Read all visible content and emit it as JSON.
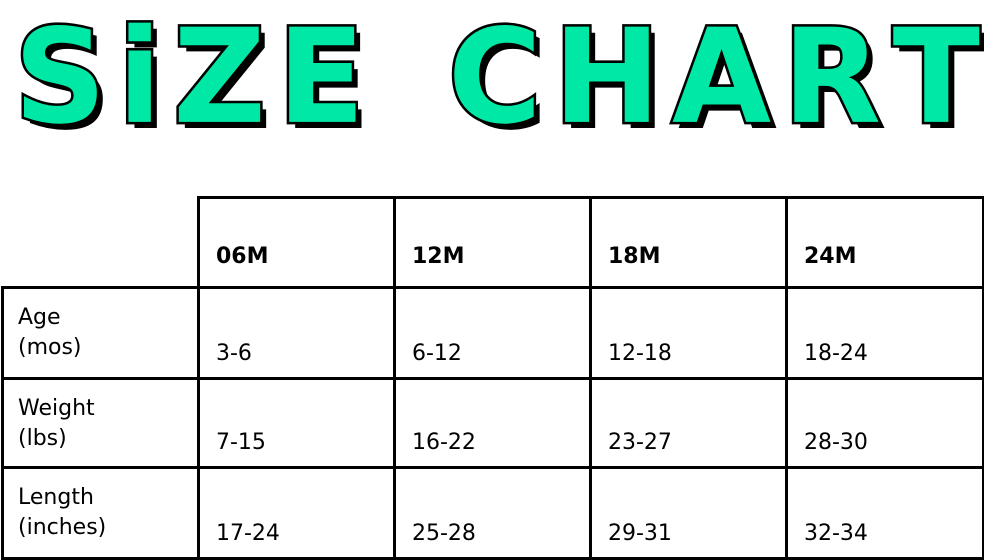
{
  "title": {
    "word1": [
      "S",
      "i",
      "Z",
      "E"
    ],
    "word2": [
      "C",
      "H",
      "A",
      "R",
      "T"
    ],
    "text": "SiZE CHART",
    "color": "#00E8A5"
  },
  "chart_data": {
    "type": "table",
    "columns": [
      "06M",
      "12M",
      "18M",
      "24M"
    ],
    "rows": [
      {
        "label": [
          "Age",
          "(mos)"
        ],
        "values": [
          "3-6",
          "6-12",
          "12-18",
          "18-24"
        ]
      },
      {
        "label": [
          "Weight",
          "(lbs)"
        ],
        "values": [
          "7-15",
          "16-22",
          "23-27",
          "28-30"
        ]
      },
      {
        "label": [
          "Length",
          "(inches)"
        ],
        "values": [
          "17-24",
          "25-28",
          "29-31",
          "32-34"
        ]
      }
    ]
  }
}
